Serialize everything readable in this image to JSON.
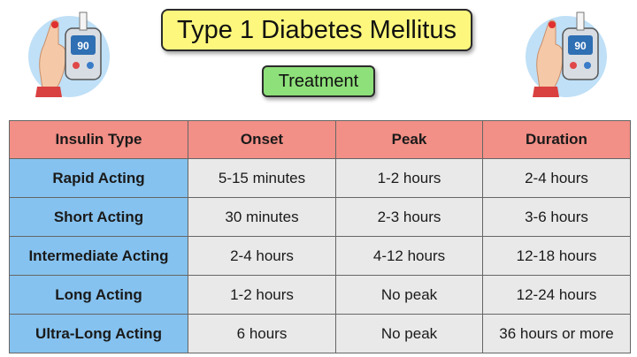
{
  "title": "Type 1 Diabetes Mellitus",
  "subtitle": "Treatment",
  "icons": {
    "left": "glucose-meter-icon",
    "right": "glucose-meter-icon",
    "meter_reading": "90"
  },
  "colors": {
    "title_bg": "#fdf77d",
    "subtitle_bg": "#8ee07a",
    "header_bg": "#f28f86",
    "rowhead_bg": "#85c2ef",
    "cell_bg": "#e9e9e9"
  },
  "table": {
    "headers": [
      "Insulin Type",
      "Onset",
      "Peak",
      "Duration"
    ],
    "rows": [
      [
        "Rapid Acting",
        "5-15 minutes",
        "1-2 hours",
        "2-4 hours"
      ],
      [
        "Short Acting",
        "30 minutes",
        "2-3 hours",
        "3-6 hours"
      ],
      [
        "Intermediate Acting",
        "2-4 hours",
        "4-12 hours",
        "12-18 hours"
      ],
      [
        "Long Acting",
        "1-2 hours",
        "No peak",
        "12-24 hours"
      ],
      [
        "Ultra-Long Acting",
        "6 hours",
        "No peak",
        "36 hours or more"
      ]
    ]
  }
}
